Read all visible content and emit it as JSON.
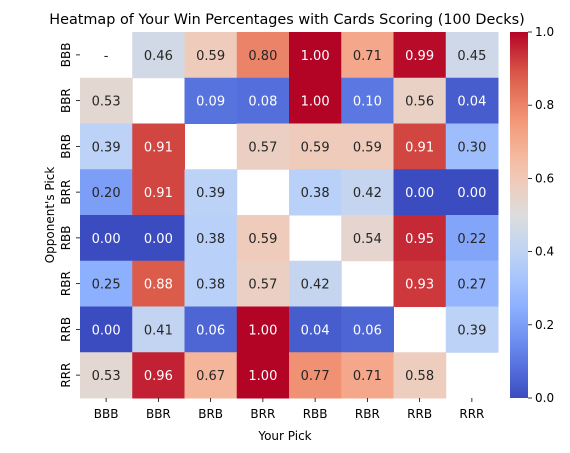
{
  "chart_data": {
    "type": "heatmap",
    "title": "Heatmap of Your Win Percentages with Cards Scoring (100 Decks)",
    "xlabel": "Your Pick",
    "ylabel": "Opponent's Pick",
    "x_categories": [
      "BBB",
      "BBR",
      "BRB",
      "BRR",
      "RBB",
      "RBR",
      "RRB",
      "RRR"
    ],
    "y_categories": [
      "BBB",
      "BBR",
      "BRB",
      "BRR",
      "RBB",
      "RBR",
      "RRB",
      "RRR"
    ],
    "values": [
      [
        null,
        0.46,
        0.59,
        0.8,
        1.0,
        0.71,
        0.99,
        0.45
      ],
      [
        0.53,
        null,
        0.09,
        0.08,
        1.0,
        0.1,
        0.56,
        0.04
      ],
      [
        0.39,
        0.91,
        null,
        0.57,
        0.59,
        0.59,
        0.91,
        0.3
      ],
      [
        0.2,
        0.91,
        0.39,
        null,
        0.38,
        0.42,
        0.0,
        0.0
      ],
      [
        0.0,
        0.0,
        0.38,
        0.59,
        null,
        0.54,
        0.95,
        0.22
      ],
      [
        0.25,
        0.88,
        0.38,
        0.57,
        0.42,
        null,
        0.93,
        0.27
      ],
      [
        0.0,
        0.41,
        0.06,
        1.0,
        0.04,
        0.06,
        null,
        0.39
      ],
      [
        0.53,
        0.96,
        0.67,
        1.0,
        0.77,
        0.71,
        0.58,
        null
      ]
    ],
    "cell_labels": [
      [
        "-",
        "0.46",
        "0.59",
        "0.80",
        "1.00",
        "0.71",
        "0.99",
        "0.45"
      ],
      [
        "0.53",
        "",
        "0.09",
        "0.08",
        "1.00",
        "0.10",
        "0.56",
        "0.04"
      ],
      [
        "0.39",
        "0.91",
        "",
        "0.57",
        "0.59",
        "0.59",
        "0.91",
        "0.30"
      ],
      [
        "0.20",
        "0.91",
        "0.39",
        "",
        "0.38",
        "0.42",
        "0.00",
        "0.00"
      ],
      [
        "0.00",
        "0.00",
        "0.38",
        "0.59",
        "",
        "0.54",
        "0.95",
        "0.22"
      ],
      [
        "0.25",
        "0.88",
        "0.38",
        "0.57",
        "0.42",
        "",
        "0.93",
        "0.27"
      ],
      [
        "0.00",
        "0.41",
        "0.06",
        "1.00",
        "0.04",
        "0.06",
        "",
        "0.39"
      ],
      [
        "0.53",
        "0.96",
        "0.67",
        "1.00",
        "0.77",
        "0.71",
        "0.58",
        ""
      ]
    ],
    "colorscale": "coolwarm",
    "colorbar": {
      "range": [
        0.0,
        1.0
      ],
      "ticks": [
        0.0,
        0.2,
        0.4,
        0.6,
        0.8,
        1.0
      ],
      "tick_labels": [
        "0.0",
        "0.2",
        "0.4",
        "0.6",
        "0.8",
        "1.0"
      ]
    },
    "grid": false
  }
}
